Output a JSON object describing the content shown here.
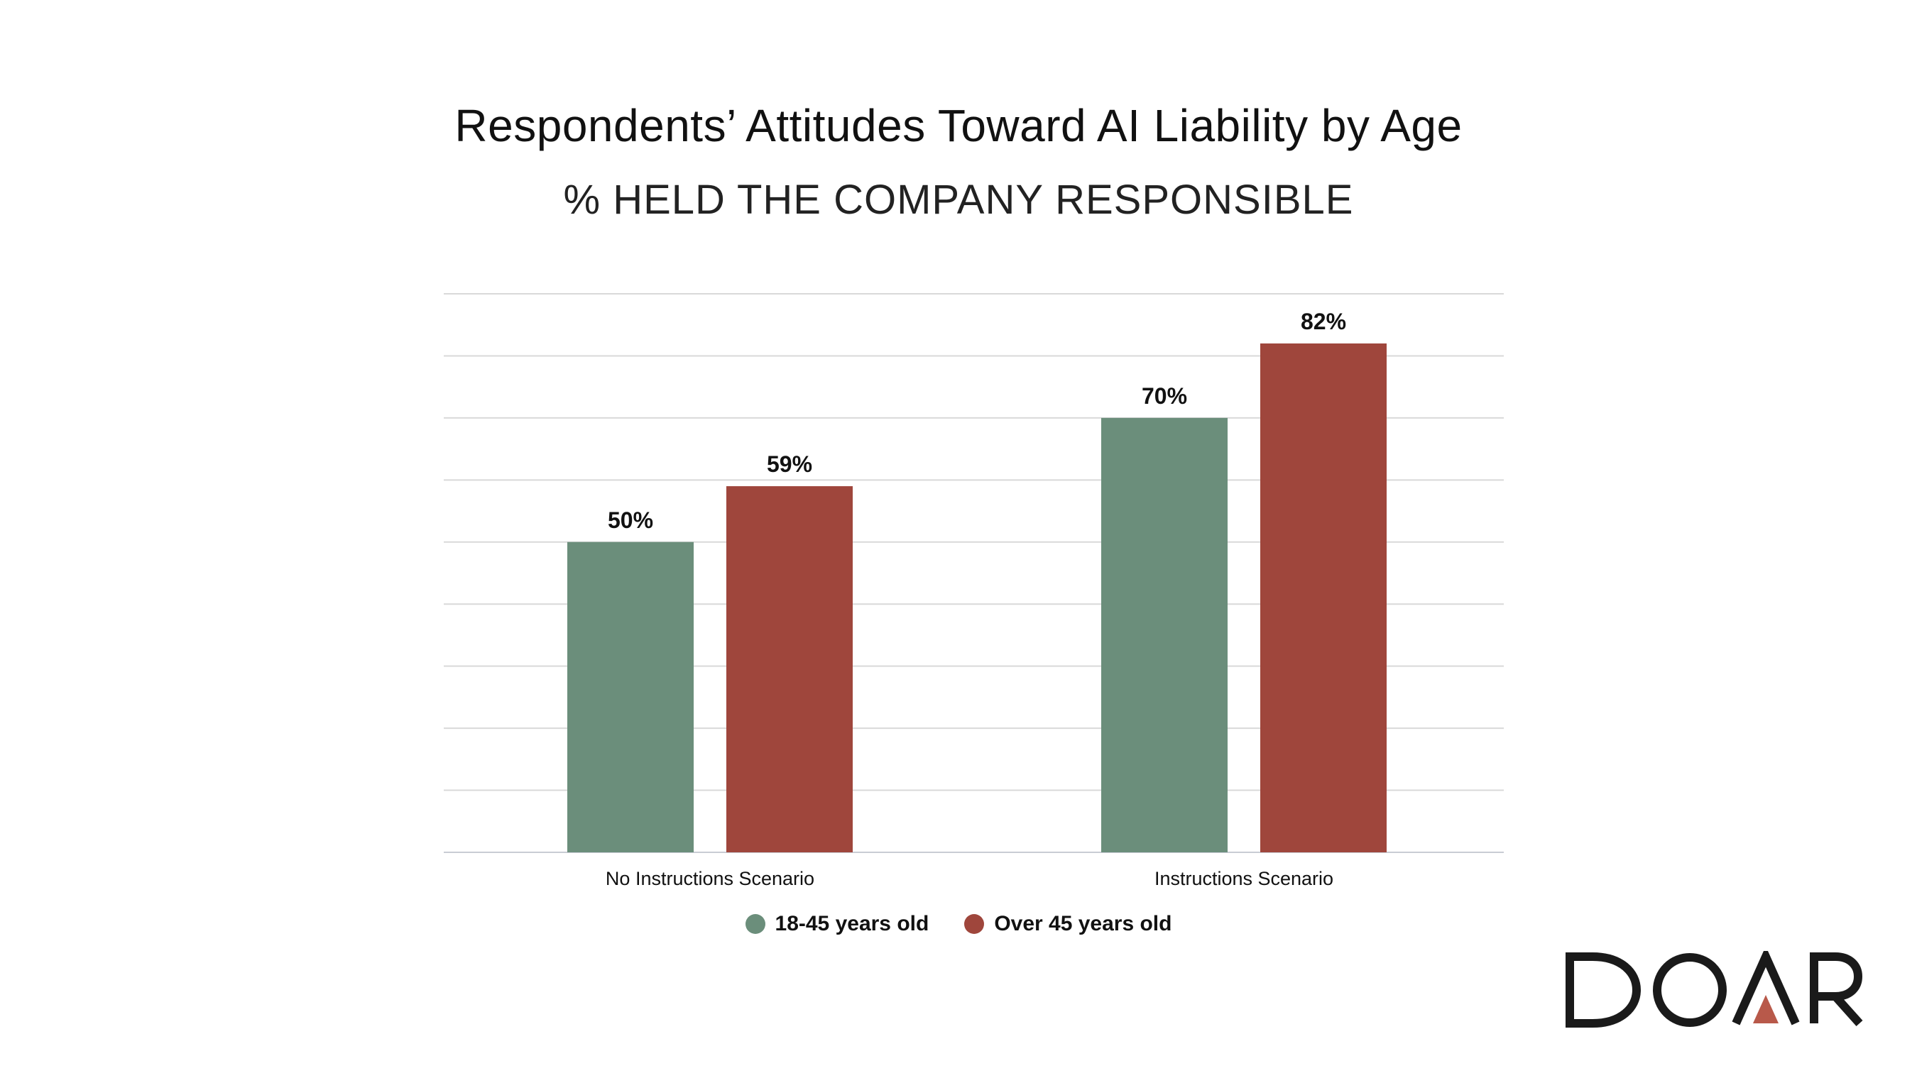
{
  "chart_data": {
    "type": "bar",
    "title": "Respondents’ Attitudes Toward AI Liability by Age",
    "subtitle": "% HELD THE COMPANY RESPONSIBLE",
    "categories": [
      "No Instructions Scenario",
      "Instructions Scenario"
    ],
    "series": [
      {
        "name": "18-45 years old",
        "color": "#6b8e7b",
        "values": [
          50,
          70
        ],
        "labels": [
          "50%",
          "70%"
        ]
      },
      {
        "name": "Over 45 years old",
        "color": "#9f463c",
        "values": [
          59,
          82
        ],
        "labels": [
          "59%",
          "82%"
        ]
      }
    ],
    "ylim": [
      0,
      90
    ],
    "grid": true,
    "legend": "bottom-center",
    "xlabel": "",
    "ylabel": ""
  },
  "brand": {
    "logo_text": "DOAR",
    "primary_color": "#1a1a1a",
    "accent_color": "#b8594a"
  }
}
